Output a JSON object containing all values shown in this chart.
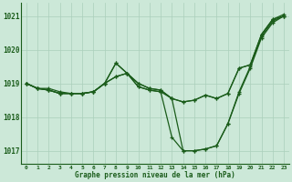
{
  "bg_color": "#cce8d8",
  "grid_color": "#aacfbb",
  "line_color": "#1a5c1a",
  "xlabel": "Graphe pression niveau de la mer (hPa)",
  "ylim": [
    1016.6,
    1021.4
  ],
  "xlim": [
    -0.5,
    23.5
  ],
  "yticks": [
    1017,
    1018,
    1019,
    1020,
    1021
  ],
  "xticks": [
    0,
    1,
    2,
    3,
    4,
    5,
    6,
    7,
    8,
    9,
    10,
    11,
    12,
    13,
    14,
    15,
    16,
    17,
    18,
    19,
    20,
    21,
    22,
    23
  ],
  "series1": [
    1019.0,
    1018.85,
    1018.85,
    1018.75,
    1018.7,
    1018.7,
    1018.75,
    1019.0,
    1019.6,
    1019.3,
    1019.0,
    1018.85,
    1018.8,
    1018.55,
    1017.0,
    1017.0,
    1017.05,
    1017.15,
    1017.8,
    1018.75,
    1019.5,
    1020.4,
    1020.85,
    1021.0
  ],
  "series2": [
    1019.0,
    1018.85,
    1018.8,
    1018.7,
    1018.7,
    1018.7,
    1018.75,
    1019.0,
    1019.6,
    1019.3,
    1018.9,
    1018.8,
    1018.75,
    1017.4,
    1017.0,
    1017.0,
    1017.05,
    1017.15,
    1017.8,
    1018.7,
    1019.45,
    1020.35,
    1020.8,
    1021.0
  ],
  "series3": [
    1019.0,
    1018.85,
    1018.8,
    1018.7,
    1018.7,
    1018.7,
    1018.75,
    1019.0,
    1019.2,
    1019.3,
    1019.0,
    1018.85,
    1018.8,
    1018.55,
    1018.45,
    1018.5,
    1018.65,
    1018.55,
    1018.7,
    1019.45,
    1019.55,
    1020.45,
    1020.9,
    1021.0
  ],
  "series4": [
    1019.0,
    1018.85,
    1018.8,
    1018.7,
    1018.7,
    1018.7,
    1018.75,
    1019.0,
    1019.2,
    1019.3,
    1018.9,
    1018.8,
    1018.75,
    1018.55,
    1018.45,
    1018.5,
    1018.65,
    1018.55,
    1018.7,
    1019.45,
    1019.55,
    1020.45,
    1020.9,
    1021.05
  ]
}
